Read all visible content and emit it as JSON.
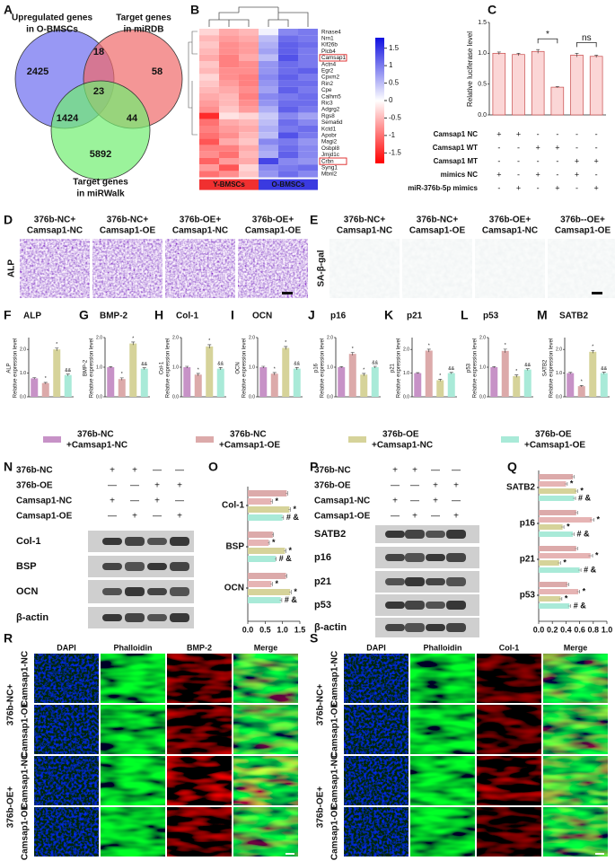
{
  "panel_labels": [
    "A",
    "B",
    "C",
    "D",
    "E",
    "F",
    "G",
    "H",
    "I",
    "J",
    "K",
    "L",
    "M",
    "N",
    "O",
    "P",
    "Q",
    "R",
    "S"
  ],
  "venn": {
    "sets": [
      [
        "Upregulated genes",
        "in O-BMSCs"
      ],
      [
        "Target genes",
        "in miRDB"
      ],
      [
        "Target genes",
        "in miRWalk"
      ]
    ],
    "regions": [
      2425,
      18,
      58,
      23,
      1424,
      44,
      5892
    ]
  },
  "chart_data": [
    {
      "type": "heatmap",
      "genes": [
        "Rnase4",
        "Nrn1",
        "Klf26b",
        "Plcb4",
        "Camsap1",
        "Actn4",
        "Egr2",
        "Cpxm2",
        "Rin2",
        "Cpe",
        "Calhm5",
        "Ric3",
        "Adgrg2",
        "Rgs8",
        "Sema6d",
        "Kctd1",
        "Apobr",
        "Magi2",
        "Osbpl8",
        "Jmjd1c",
        "Crbn",
        "Syng1",
        "Mbnl2"
      ],
      "boxed_genes": [
        "Camsap1",
        "Crbn"
      ],
      "groups": [
        {
          "name": "Y-BMSCs",
          "color": "#f03030"
        },
        {
          "name": "O-BMSCs",
          "color": "#3a3ae0"
        }
      ],
      "values": [
        [
          -0.3,
          -0.6,
          -0.5,
          0.1,
          0.9,
          1.0
        ],
        [
          -0.5,
          -0.7,
          -0.6,
          0.5,
          1.1,
          1.0
        ],
        [
          -0.4,
          -0.8,
          -0.7,
          0.6,
          1.2,
          1.1
        ],
        [
          -0.5,
          -0.8,
          -0.7,
          0.7,
          1.2,
          1.0
        ],
        [
          -0.6,
          -0.9,
          -0.6,
          0.5,
          1.3,
          1.0
        ],
        [
          -0.4,
          -0.9,
          -0.8,
          0.8,
          1.1,
          1.0
        ],
        [
          -0.5,
          -0.8,
          -0.8,
          0.8,
          1.1,
          1.2
        ],
        [
          -0.3,
          -0.8,
          -0.9,
          0.9,
          1.2,
          1.0
        ],
        [
          -0.4,
          -0.7,
          -0.9,
          0.8,
          1.1,
          1.1
        ],
        [
          -0.5,
          -0.6,
          -0.8,
          0.7,
          1.2,
          1.0
        ],
        [
          -0.6,
          -0.5,
          -0.9,
          0.9,
          1.0,
          1.1
        ],
        [
          -0.7,
          -0.5,
          -0.8,
          0.8,
          1.1,
          1.1
        ],
        [
          -0.8,
          -0.4,
          -0.7,
          0.6,
          1.2,
          1.0
        ],
        [
          -1.5,
          -0.2,
          -0.3,
          0.4,
          0.9,
          0.7
        ],
        [
          -1.0,
          -0.6,
          -0.5,
          0.5,
          1.1,
          0.9
        ],
        [
          -0.9,
          -0.7,
          -0.6,
          0.6,
          1.0,
          1.1
        ],
        [
          -1.0,
          -0.8,
          -0.5,
          0.5,
          1.3,
          1.0
        ],
        [
          -1.2,
          -0.6,
          -0.4,
          0.9,
          1.0,
          0.8
        ],
        [
          -0.9,
          -0.9,
          -0.6,
          0.7,
          1.1,
          0.9
        ],
        [
          -0.8,
          -1.0,
          -0.5,
          0.6,
          1.2,
          0.9
        ],
        [
          -1.1,
          -0.7,
          -0.6,
          1.4,
          0.9,
          0.8
        ],
        [
          -0.7,
          -1.2,
          -0.3,
          0.9,
          1.0,
          1.1
        ],
        [
          -1.0,
          -0.8,
          -0.4,
          0.8,
          1.1,
          0.9
        ]
      ],
      "clim": [
        -1.8,
        1.8
      ],
      "colors": {
        "low": "#ff0000",
        "mid": "#ffffff",
        "high": "#1010e0"
      },
      "colorbar_ticks": [
        1.5,
        1,
        0.5,
        0,
        -0.5,
        -1,
        -1.5
      ]
    },
    {
      "type": "bar",
      "ylabel": "Relative luciferase level",
      "color": "#fbd6d6",
      "edge": "#c84a4a",
      "values": [
        1.0,
        0.98,
        1.03,
        0.45,
        0.97,
        0.95
      ],
      "errors": [
        0.02,
        0.02,
        0.03,
        0.01,
        0.03,
        0.02
      ],
      "ylim": [
        0,
        1.5
      ],
      "yticks": [
        {
          "value": 0,
          "label": "0.0"
        },
        {
          "value": 0.5,
          "label": "0.5"
        },
        {
          "value": 1,
          "label": "1.0"
        },
        {
          "value": 1.5,
          "label": "1.5"
        }
      ],
      "annotations": [
        "*",
        "ns"
      ],
      "conditions": [
        {
          "name": "Camsap1 NC",
          "signs": [
            "+",
            "+",
            "-",
            "-",
            "-",
            "-"
          ]
        },
        {
          "name": "Camsap1 WT",
          "signs": [
            "-",
            "-",
            "+",
            "+",
            "-",
            "-"
          ]
        },
        {
          "name": "Camsap1 MT",
          "signs": [
            "-",
            "-",
            "-",
            "-",
            "+",
            "+"
          ]
        },
        {
          "name": "mimics NC",
          "signs": [
            "+",
            "-",
            "+",
            "-",
            "+",
            "-"
          ]
        },
        {
          "name": "miR-376b-5p mimics",
          "signs": [
            "-",
            "+",
            "-",
            "+",
            "-",
            "+"
          ]
        }
      ]
    },
    {
      "type": "bar",
      "title": "ALP",
      "ylabel": [
        "ALP",
        "Relative expression level"
      ],
      "values": [
        0.78,
        0.58,
        2.0,
        0.92
      ],
      "errors": [
        0.03,
        0.03,
        0.06,
        0.04
      ],
      "annotations": [
        null,
        "*",
        "*",
        "&&"
      ],
      "ylim": [
        0,
        2.5
      ],
      "yticks": [
        {
          "value": 0,
          "label": "0.0"
        },
        {
          "value": 1,
          "label": "1.0"
        },
        {
          "value": 2,
          "label": "2.0"
        }
      ]
    },
    {
      "type": "bar",
      "title": "BMP-2",
      "ylabel": [
        "BMP-2",
        "Relative expression level"
      ],
      "values": [
        1.0,
        0.6,
        1.8,
        0.95
      ],
      "errors": [
        0.02,
        0.04,
        0.05,
        0.03
      ],
      "annotations": [
        null,
        "*",
        "*",
        "&&"
      ],
      "ylim": [
        0,
        2
      ],
      "yticks": [
        {
          "value": 0,
          "label": "0.0"
        },
        {
          "value": 1,
          "label": "1.0"
        },
        {
          "value": 2,
          "label": "2.0"
        }
      ]
    },
    {
      "type": "bar",
      "title": "Col-1",
      "ylabel": [
        "Col-1",
        "Relative expression level"
      ],
      "values": [
        1.0,
        0.75,
        1.7,
        0.95
      ],
      "errors": [
        0.03,
        0.04,
        0.06,
        0.04
      ],
      "annotations": [
        null,
        "*",
        "*",
        "&&"
      ],
      "ylim": [
        0,
        2
      ],
      "yticks": [
        {
          "value": 0,
          "label": "0.0"
        },
        {
          "value": 1,
          "label": "1.0"
        },
        {
          "value": 2,
          "label": "2.0"
        }
      ]
    },
    {
      "type": "bar",
      "title": "OCN",
      "ylabel": [
        "OCN",
        "Relative expression level"
      ],
      "values": [
        1.0,
        0.78,
        1.65,
        0.95
      ],
      "errors": [
        0.03,
        0.04,
        0.05,
        0.04
      ],
      "annotations": [
        null,
        "*",
        "*",
        "&&"
      ],
      "ylim": [
        0,
        2
      ],
      "yticks": [
        {
          "value": 0,
          "label": "0.0"
        },
        {
          "value": 1,
          "label": "1.0"
        },
        {
          "value": 2,
          "label": "2.0"
        }
      ]
    },
    {
      "type": "bar",
      "title": "p16",
      "ylabel": [
        "p16",
        "Relative expression level"
      ],
      "values": [
        1.0,
        1.45,
        0.75,
        1.0
      ],
      "errors": [
        0.02,
        0.05,
        0.04,
        0.03
      ],
      "annotations": [
        null,
        "*",
        "*",
        "&&"
      ],
      "ylim": [
        0,
        2
      ],
      "yticks": [
        {
          "value": 0,
          "label": "0.0"
        },
        {
          "value": 1,
          "label": "1.0"
        },
        {
          "value": 2,
          "label": "2.0"
        }
      ]
    },
    {
      "type": "bar",
      "title": "p21",
      "ylabel": [
        "p21",
        "Relative expression level"
      ],
      "values": [
        1.0,
        1.95,
        0.7,
        1.0
      ],
      "errors": [
        0.02,
        0.06,
        0.04,
        0.03
      ],
      "annotations": [
        null,
        "*",
        "*",
        "&&"
      ],
      "ylim": [
        0,
        2.5
      ],
      "yticks": [
        {
          "value": 0,
          "label": "0.0"
        },
        {
          "value": 1,
          "label": "1.0"
        },
        {
          "value": 2,
          "label": "2.0"
        }
      ]
    },
    {
      "type": "bar",
      "title": "p53",
      "ylabel": [
        "p53",
        "Relative expression level"
      ],
      "values": [
        1.0,
        1.55,
        0.7,
        0.92
      ],
      "errors": [
        0.02,
        0.06,
        0.04,
        0.03
      ],
      "annotations": [
        null,
        "*",
        "*",
        "&&"
      ],
      "ylim": [
        0,
        2
      ],
      "yticks": [
        {
          "value": 0,
          "label": "0.0"
        },
        {
          "value": 1,
          "label": "1.0"
        },
        {
          "value": 2,
          "label": "2.0"
        }
      ]
    },
    {
      "type": "bar",
      "title": "SATB2",
      "ylabel": [
        "SATB2",
        "Relative expression level"
      ],
      "values": [
        1.0,
        0.45,
        1.9,
        1.0
      ],
      "errors": [
        0.03,
        0.03,
        0.06,
        0.04
      ],
      "annotations": [
        null,
        "*",
        "*",
        "&&"
      ],
      "ylim": [
        0,
        2.5
      ],
      "yticks": [
        {
          "value": 0,
          "label": "0.0"
        },
        {
          "value": 1,
          "label": "1.0"
        },
        {
          "value": 2,
          "label": "2.0"
        }
      ]
    },
    {
      "type": "hbar",
      "categories": [
        "Col-1",
        "BSP",
        "OCN"
      ],
      "series": [
        {
          "color": "#dcaaaa",
          "values": [
            1.12,
            0.72,
            1.1
          ],
          "errors": [
            0.03,
            0.02,
            0.03
          ]
        },
        {
          "color": "#e6b4b4",
          "values": [
            0.68,
            0.6,
            0.68
          ],
          "errors": [
            0.03,
            0.02,
            0.03
          ],
          "annotations": [
            "*",
            "*",
            "*"
          ]
        },
        {
          "color": "#d6d39a",
          "values": [
            1.2,
            1.07,
            1.22
          ],
          "errors": [
            0.03,
            0.03,
            0.03
          ],
          "annotations": [
            "*",
            "*",
            "*"
          ]
        },
        {
          "color": "#a9ead8",
          "values": [
            1.0,
            0.8,
            0.95
          ],
          "errors": [
            0.03,
            0.02,
            0.03
          ],
          "annotations": [
            "# &",
            "# &",
            "# &"
          ]
        }
      ],
      "xlim": [
        0,
        1.5
      ],
      "xticks": [
        {
          "value": 0,
          "label": "0.0"
        },
        {
          "value": 0.5,
          "label": "0.5"
        },
        {
          "value": 1,
          "label": "1.0"
        },
        {
          "value": 1.5,
          "label": "1.5"
        }
      ]
    },
    {
      "type": "hbar",
      "categories": [
        "SATB2",
        "p16",
        "p21",
        "p53"
      ],
      "series": [
        {
          "color": "#dcaaaa",
          "values": [
            0.5,
            0.55,
            0.55,
            0.42
          ],
          "errors": [
            0.02,
            0.02,
            0.02,
            0.02
          ]
        },
        {
          "color": "#e6b4b4",
          "values": [
            0.4,
            0.78,
            0.76,
            0.58
          ],
          "errors": [
            0.02,
            0.03,
            0.03,
            0.02
          ],
          "annotations": [
            "*",
            "*",
            "*",
            "*"
          ]
        },
        {
          "color": "#d6d39a",
          "values": [
            0.55,
            0.35,
            0.3,
            0.32
          ],
          "errors": [
            0.02,
            0.02,
            0.02,
            0.02
          ],
          "annotations": [
            "*",
            "*",
            "*",
            "*"
          ]
        },
        {
          "color": "#a9ead8",
          "values": [
            0.52,
            0.5,
            0.6,
            0.45
          ],
          "errors": [
            0.02,
            0.02,
            0.02,
            0.02
          ],
          "annotations": [
            "# &",
            "# &",
            "# &",
            "# &"
          ]
        }
      ],
      "xlim": [
        0,
        1
      ],
      "xticks": [
        {
          "value": 0,
          "label": "0.0"
        },
        {
          "value": 0.2,
          "label": "0.2"
        },
        {
          "value": 0.4,
          "label": "0.4"
        },
        {
          "value": 0.6,
          "label": "0.6"
        },
        {
          "value": 0.8,
          "label": "0.8"
        },
        {
          "value": 1,
          "label": "1.0"
        }
      ]
    }
  ],
  "legend": [
    {
      "name": [
        "376b-NC",
        "+Camsap1-NC"
      ],
      "color": "#c792c7"
    },
    {
      "name": [
        "376b-NC",
        "+Camsap1-OE"
      ],
      "color": "#dcaaaa"
    },
    {
      "name": [
        "376b-OE",
        "+Camsap1-NC"
      ],
      "color": "#d6d39a"
    },
    {
      "name": [
        "376b-OE",
        "+Camsap1-OE"
      ],
      "color": "#a9ead8"
    }
  ],
  "staining_d": {
    "columns": [
      [
        "376b-NC+",
        "Camsap1-NC"
      ],
      [
        "376b-NC+",
        "Camsap1-OE"
      ],
      [
        "376b-OE+",
        "Camsap1-NC"
      ],
      [
        "376b-OE+",
        "Camsap1-OE"
      ]
    ],
    "side_label": "ALP"
  },
  "staining_e": {
    "columns": [
      [
        "376b-NC+",
        "Camsap1-NC"
      ],
      [
        "376b-NC+",
        "Camsap1-OE"
      ],
      [
        "376b-OE+",
        "Camsap1-NC"
      ],
      [
        "376b--OE+",
        "Camsap1-OE"
      ]
    ],
    "side_label": "SA-β-gal"
  },
  "blot_n": {
    "conditions": [
      {
        "name": "376b-NC",
        "signs": [
          "+",
          "+",
          "—",
          "—"
        ]
      },
      {
        "name": "376b-OE",
        "signs": [
          "—",
          "—",
          "+",
          "+"
        ]
      },
      {
        "name": "Camsap1-NC",
        "signs": [
          "+",
          "—",
          "+",
          "—"
        ]
      },
      {
        "name": "Camsap1-OE",
        "signs": [
          "—",
          "+",
          "—",
          "+"
        ]
      }
    ],
    "bands": [
      "Col-1",
      "BSP",
      "OCN",
      "β-actin"
    ]
  },
  "blot_p": {
    "conditions": [
      {
        "name": "376b-NC",
        "signs": [
          "+",
          "+",
          "—",
          "—"
        ]
      },
      {
        "name": "376b-OE",
        "signs": [
          "—",
          "—",
          "+",
          "+"
        ]
      },
      {
        "name": "Camsap1-NC",
        "signs": [
          "+",
          "—",
          "+",
          "—"
        ]
      },
      {
        "name": "Camsap1-OE",
        "signs": [
          "—",
          "+",
          "—",
          "+"
        ]
      }
    ],
    "bands": [
      "SATB2",
      "p16",
      "p21",
      "p53",
      "β-actin"
    ]
  },
  "if_r": {
    "channels": [
      {
        "name": "DAPI",
        "color": "#3434c8"
      },
      {
        "name": "Phalloidin",
        "color": "#16963a"
      },
      {
        "name": "BMP-2",
        "color": "#d41e1e"
      },
      {
        "name": "Merge",
        "color": "#222222"
      }
    ],
    "row_groups": [
      {
        "name": "376b-NC+",
        "rows": [
          "Camsap1-NC",
          "Camsap1-OE"
        ]
      },
      {
        "name": "376b-OE+",
        "rows": [
          "Camsap1-NC",
          "Camsap1-OE"
        ]
      }
    ]
  },
  "if_s": {
    "channels": [
      {
        "name": "DAPI",
        "color": "#3434c8"
      },
      {
        "name": "Phalloidin",
        "color": "#16963a"
      },
      {
        "name": "Col-1",
        "color": "#d41e1e"
      },
      {
        "name": "Merge",
        "color": "#222222"
      }
    ],
    "row_groups": [
      {
        "name": "376b-NC+",
        "rows": [
          "Camsap1-NC",
          "Camsap1-OE"
        ]
      },
      {
        "name": "376b-OE+",
        "rows": [
          "Camsap1-NC",
          "Camsap1-OE"
        ]
      }
    ]
  }
}
